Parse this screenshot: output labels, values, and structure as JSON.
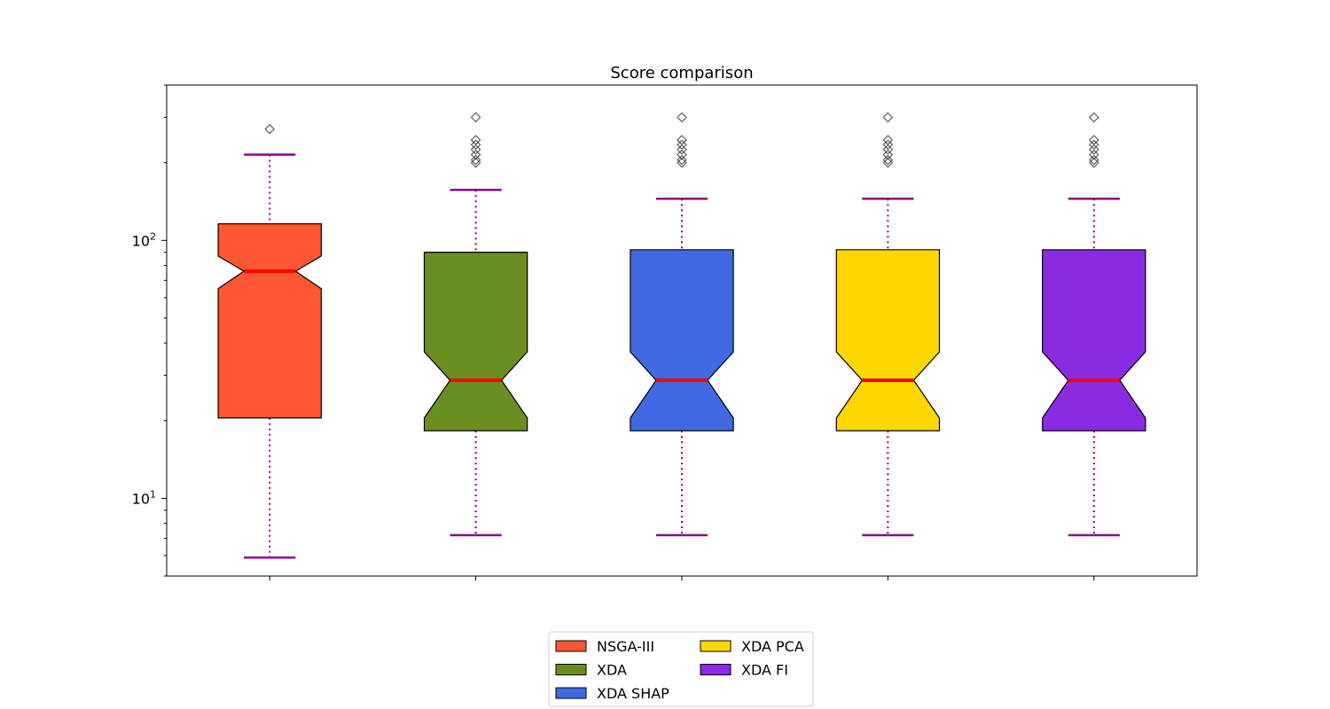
{
  "chart_data": {
    "type": "boxplot",
    "title": "Score comparison",
    "xlabel": "",
    "ylabel": "",
    "yscale": "log",
    "ylim": [
      5,
      400
    ],
    "y_ticks": [
      {
        "value": 10,
        "base": "10",
        "exp": "1"
      },
      {
        "value": 100,
        "base": "10",
        "exp": "2"
      }
    ],
    "grid": false,
    "legend": {
      "placement": "bottom-center",
      "columns": 2
    },
    "colors": {
      "median": "#ff0000",
      "whisker": "#8b008b",
      "box_edge": "#000000",
      "outlier_edge": "#333333"
    },
    "series": [
      {
        "name": "NSGA-III",
        "color": "#ff5733",
        "whisker_low": 5.9,
        "q1": 20.5,
        "median": 76,
        "q3": 116,
        "whisker_high": 215,
        "notch_low": 65,
        "notch_high": 87,
        "outliers": [
          270
        ]
      },
      {
        "name": "XDA",
        "color": "#6b8e23",
        "whisker_low": 7.2,
        "q1": 18.3,
        "median": 28.7,
        "q3": 90,
        "whisker_high": 157,
        "notch_low": 20.5,
        "notch_high": 37,
        "outliers": [
          200,
          205,
          215,
          225,
          235,
          245,
          300
        ]
      },
      {
        "name": "XDA SHAP",
        "color": "#4169e1",
        "whisker_low": 7.2,
        "q1": 18.3,
        "median": 28.7,
        "q3": 92,
        "whisker_high": 145,
        "notch_low": 20.5,
        "notch_high": 37,
        "outliers": [
          200,
          205,
          215,
          225,
          235,
          245,
          300
        ]
      },
      {
        "name": "XDA PCA",
        "color": "#ffd700",
        "whisker_low": 7.2,
        "q1": 18.3,
        "median": 28.7,
        "q3": 92,
        "whisker_high": 145,
        "notch_low": 20.5,
        "notch_high": 37,
        "outliers": [
          200,
          205,
          215,
          225,
          235,
          245,
          300
        ]
      },
      {
        "name": "XDA FI",
        "color": "#8a2be2",
        "whisker_low": 7.2,
        "q1": 18.3,
        "median": 28.7,
        "q3": 92,
        "whisker_high": 145,
        "notch_low": 20.5,
        "notch_high": 37,
        "outliers": [
          200,
          205,
          215,
          225,
          235,
          245,
          300
        ]
      }
    ]
  }
}
